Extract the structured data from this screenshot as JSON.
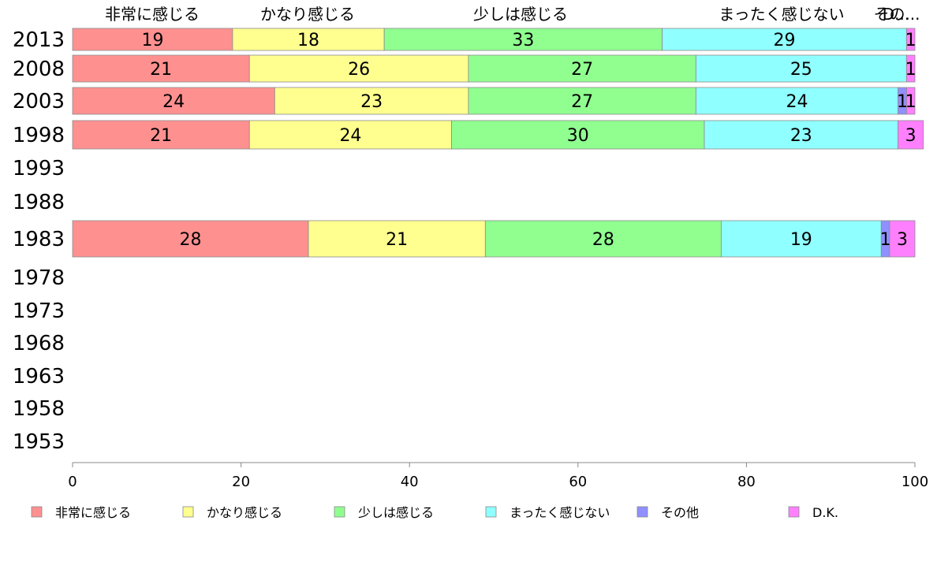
{
  "chart_data": {
    "type": "bar",
    "orientation": "horizontal",
    "stacked": true,
    "categories": [
      "2013",
      "2008",
      "2003",
      "1998",
      "1993",
      "1988",
      "1983",
      "1978",
      "1973",
      "1968",
      "1963",
      "1958",
      "1953"
    ],
    "series": [
      {
        "name": "非常に感じる",
        "color": "#ff9090",
        "values": [
          19,
          21,
          24,
          21,
          null,
          null,
          28,
          null,
          null,
          null,
          null,
          null,
          null
        ]
      },
      {
        "name": "かなり感じる",
        "color": "#ffff90",
        "values": [
          18,
          26,
          23,
          24,
          null,
          null,
          21,
          null,
          null,
          null,
          null,
          null,
          null
        ]
      },
      {
        "name": "少しは感じる",
        "color": "#90ff90",
        "values": [
          33,
          27,
          27,
          30,
          null,
          null,
          28,
          null,
          null,
          null,
          null,
          null,
          null
        ]
      },
      {
        "name": "まったく感じない",
        "color": "#90ffff",
        "values": [
          29,
          25,
          24,
          23,
          null,
          null,
          19,
          null,
          null,
          null,
          null,
          null,
          null
        ]
      },
      {
        "name": "その他",
        "color": "#9090ff",
        "values": [
          0,
          0,
          1,
          0,
          null,
          null,
          1,
          null,
          null,
          null,
          null,
          null,
          null
        ]
      },
      {
        "name": "D.K.",
        "color": "#ff80ff",
        "values": [
          1,
          1,
          1,
          3,
          null,
          null,
          3,
          null,
          null,
          null,
          null,
          null,
          null
        ]
      }
    ],
    "top_labels": [
      "非常に感じる",
      "かなり感じる",
      "少しは感じる",
      "まったく感じない",
      "その...",
      "D..."
    ],
    "x_ticks": [
      0,
      20,
      40,
      60,
      80,
      100
    ],
    "xlim": [
      0,
      100
    ],
    "grid": false,
    "legend_position": "bottom"
  }
}
